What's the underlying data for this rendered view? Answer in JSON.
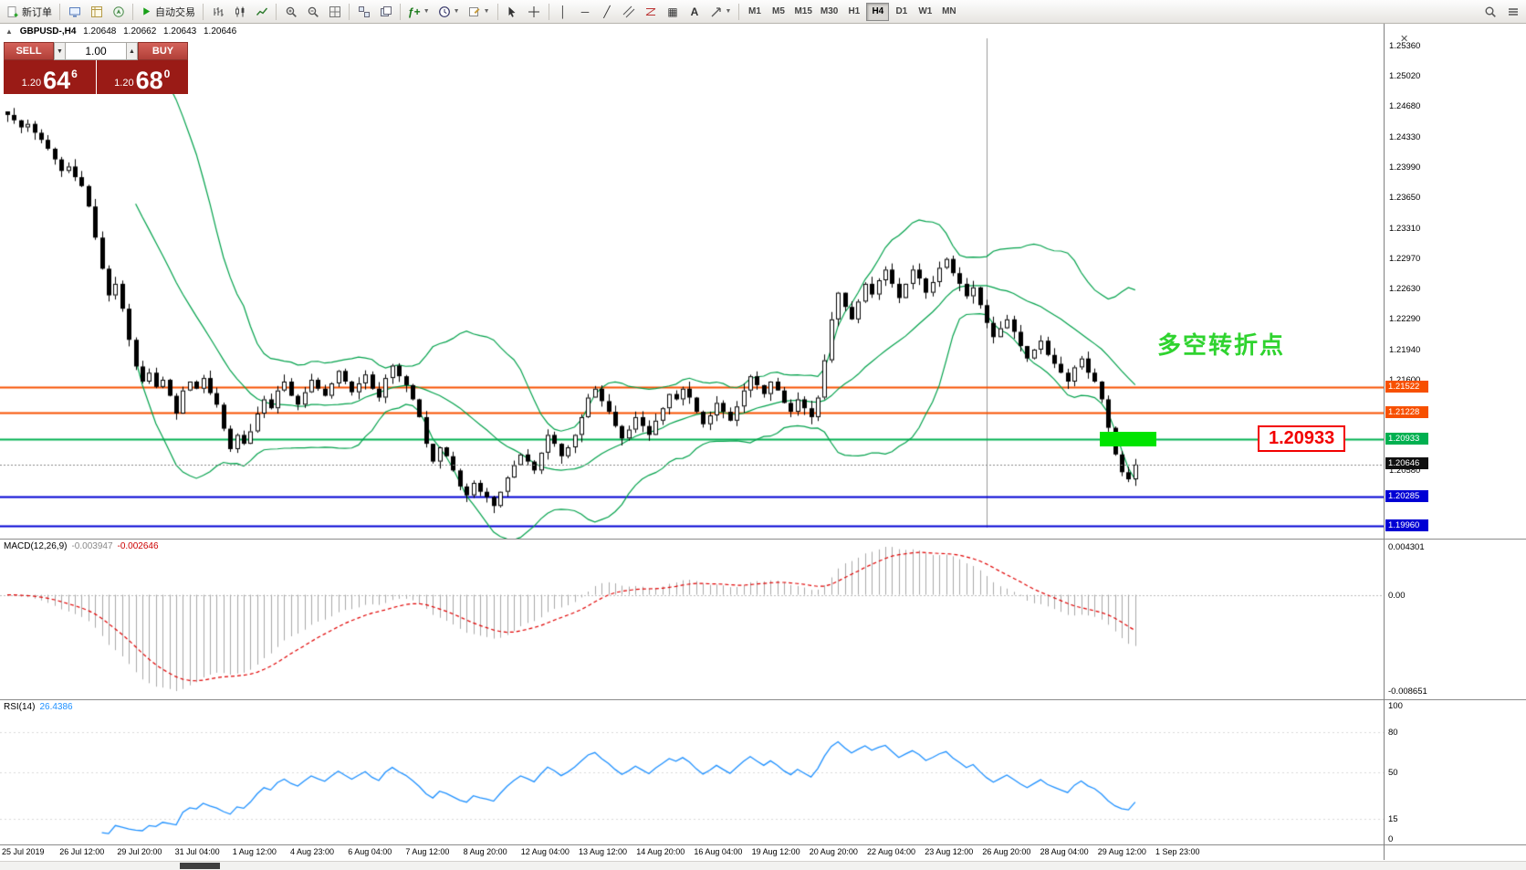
{
  "toolbar": {
    "new_order": "新订单",
    "auto_trading": "自动交易",
    "timeframes": [
      "M1",
      "M5",
      "M15",
      "M30",
      "H1",
      "H4",
      "D1",
      "W1",
      "MN"
    ],
    "active_timeframe": "H4",
    "icons": [
      "new-order-icon",
      "market-watch-icon",
      "data-window-icon",
      "navigator-icon",
      "auto-trading-play-icon",
      "bar-chart-icon",
      "candlestick-chart-icon",
      "line-chart-icon",
      "zoom-in-icon",
      "zoom-out-icon",
      "grid-icon",
      "tile-windows-icon",
      "cascade-windows-icon",
      "indicators-icon",
      "periods-icon",
      "templates-icon",
      "cursor-icon",
      "crosshair-icon",
      "vertical-line-icon",
      "horizontal-line-icon",
      "trendline-icon",
      "channel-icon",
      "fibonacci-icon",
      "shapes-icon",
      "text-icon",
      "arrow-icon",
      "search-icon",
      "menu-icon"
    ]
  },
  "chart_header": {
    "symbol_period": "GBPUSD-,H4",
    "open": "1.20648",
    "high": "1.20662",
    "low": "1.20643",
    "close": "1.20646"
  },
  "trade_panel": {
    "sell_label": "SELL",
    "buy_label": "BUY",
    "volume": "1.00",
    "sell_price_prefix": "1.20",
    "sell_price_big": "64",
    "sell_price_sup": "6",
    "buy_price_prefix": "1.20",
    "buy_price_big": "68",
    "buy_price_sup": "0"
  },
  "annotation": "多空转折点",
  "callout_price": "1.20933",
  "levels": [
    {
      "value": 1.21522,
      "label": "1.21522",
      "color": "#f75000",
      "width": 2
    },
    {
      "value": 1.21228,
      "label": "1.21228",
      "color": "#f75000",
      "width": 2
    },
    {
      "value": 1.20933,
      "label": "1.20933",
      "color": "#00b050",
      "width": 2
    },
    {
      "value": 1.20285,
      "label": "1.20285",
      "color": "#0000d4",
      "width": 2
    },
    {
      "value": 1.1996,
      "label": "1.19960",
      "color": "#0000d4",
      "width": 2
    }
  ],
  "bid": {
    "value": 1.20646,
    "label": "1.20646"
  },
  "price_axis_ticks": [
    "1.25360",
    "1.25020",
    "1.24680",
    "1.24330",
    "1.23990",
    "1.23650",
    "1.23310",
    "1.22970",
    "1.22630",
    "1.22290",
    "1.21940",
    "1.21600",
    "1.20580"
  ],
  "date_axis": [
    "25 Jul 2019",
    "26 Jul 12:00",
    "29 Jul 20:00",
    "31 Jul 04:00",
    "1 Aug 12:00",
    "4 Aug 23:00",
    "6 Aug 04:00",
    "7 Aug 12:00",
    "8 Aug 20:00",
    "12 Aug 04:00",
    "13 Aug 12:00",
    "14 Aug 20:00",
    "16 Aug 04:00",
    "19 Aug 12:00",
    "20 Aug 20:00",
    "22 Aug 04:00",
    "23 Aug 12:00",
    "26 Aug 20:00",
    "28 Aug 04:00",
    "29 Aug 12:00",
    "1 Sep 23:00"
  ],
  "macd": {
    "label": "MACD(12,26,9)",
    "value": "-0.003947",
    "signal": "-0.002646",
    "ticks": [
      "0.004301",
      "0.00",
      "-0.008651"
    ]
  },
  "rsi": {
    "label": "RSI(14)",
    "value": "26.4386",
    "ticks": [
      "100",
      "80",
      "50",
      "15",
      "0"
    ]
  },
  "chart_data": {
    "type": "candlestick",
    "symbol": "GBPUSD",
    "period": "H4",
    "title": "GBPUSD-,H4",
    "price_range": [
      1.1996,
      1.2536
    ],
    "first_open": 1.2462,
    "closes": [
      1.2458,
      1.2452,
      1.2444,
      1.2448,
      1.2438,
      1.243,
      1.242,
      1.2408,
      1.2395,
      1.24,
      1.2388,
      1.2378,
      1.2355,
      1.232,
      1.2285,
      1.2255,
      1.2268,
      1.224,
      1.2205,
      1.2175,
      1.2158,
      1.2168,
      1.2152,
      1.216,
      1.2142,
      1.2122,
      1.2148,
      1.2158,
      1.215,
      1.2162,
      1.2145,
      1.2132,
      1.2105,
      1.2082,
      1.2098,
      1.2088,
      1.2102,
      1.2122,
      1.2138,
      1.2128,
      1.2148,
      1.2158,
      1.2142,
      1.2132,
      1.2146,
      1.216,
      1.215,
      1.2142,
      1.2156,
      1.217,
      1.2158,
      1.2146,
      1.2156,
      1.2166,
      1.215,
      1.214,
      1.2162,
      1.2176,
      1.2164,
      1.2154,
      1.2138,
      1.2118,
      1.2088,
      1.2068,
      1.2084,
      1.2074,
      1.2058,
      1.204,
      1.203,
      1.2044,
      1.2034,
      1.2028,
      1.2018,
      1.2034,
      1.205,
      1.2064,
      1.2076,
      1.2068,
      1.2058,
      1.2078,
      1.2098,
      1.2088,
      1.2074,
      1.2084,
      1.2098,
      1.2118,
      1.214,
      1.215,
      1.2136,
      1.2124,
      1.2108,
      1.2094,
      1.2104,
      1.2118,
      1.2108,
      1.2098,
      1.2114,
      1.2128,
      1.2144,
      1.2138,
      1.215,
      1.214,
      1.2124,
      1.211,
      1.212,
      1.2134,
      1.2124,
      1.2114,
      1.213,
      1.2148,
      1.2164,
      1.2154,
      1.2144,
      1.2158,
      1.2148,
      1.2134,
      1.2124,
      1.2138,
      1.2128,
      1.2118,
      1.214,
      1.2182,
      1.2228,
      1.2258,
      1.2242,
      1.2228,
      1.2248,
      1.2268,
      1.2256,
      1.2272,
      1.2284,
      1.2268,
      1.2252,
      1.2268,
      1.2284,
      1.2274,
      1.2258,
      1.227,
      1.2286,
      1.2296,
      1.228,
      1.2268,
      1.2254,
      1.2264,
      1.2244,
      1.2224,
      1.2208,
      1.2218,
      1.2228,
      1.2214,
      1.2198,
      1.2184,
      1.2194,
      1.2204,
      1.2188,
      1.2178,
      1.2168,
      1.2158,
      1.2174,
      1.2184,
      1.2168,
      1.2158,
      1.2138,
      1.2106,
      1.2076,
      1.2056,
      1.2048,
      1.20646
    ],
    "overlay": "Bollinger Bands (20,2) green",
    "key_levels": [
      1.21522,
      1.21228,
      1.20933,
      1.20285,
      1.1996
    ],
    "last_price": 1.20646,
    "sub_indicators": [
      "MACD(12,26,9)",
      "RSI(14)"
    ]
  }
}
